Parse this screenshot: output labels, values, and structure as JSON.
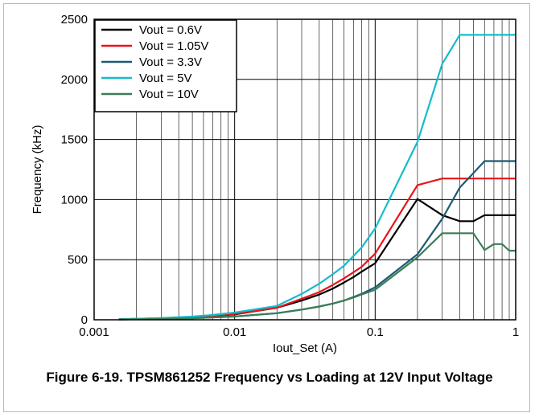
{
  "caption": "Figure 6-19. TPSM861252 Frequency vs Loading at 12V Input Voltage",
  "chart_data": {
    "type": "line",
    "title": "",
    "xlabel": "Iout_Set (A)",
    "ylabel": "Frequency (kHz)",
    "x_scale": "log",
    "xlim": [
      0.001,
      1
    ],
    "ylim": [
      0,
      2500
    ],
    "x_ticks": [
      0.001,
      0.01,
      0.1,
      1
    ],
    "x_tick_labels": [
      "0.001",
      "0.01",
      "0.1",
      "1"
    ],
    "y_ticks": [
      0,
      500,
      1000,
      1500,
      2000,
      2500
    ],
    "y_tick_labels": [
      "0",
      "500",
      "1000",
      "1500",
      "2000",
      "2500"
    ],
    "grid": true,
    "legend_position": "top-left",
    "x": [
      0.0015,
      0.002,
      0.003,
      0.005,
      0.007,
      0.01,
      0.02,
      0.03,
      0.04,
      0.05,
      0.06,
      0.07,
      0.08,
      0.1,
      0.2,
      0.3,
      0.4,
      0.5,
      0.6,
      0.7,
      0.8,
      0.9,
      1
    ],
    "series": [
      {
        "name": "Vout = 0.6V",
        "color": "#000000",
        "values": [
          5,
          8,
          13,
          22,
          32,
          45,
          100,
          160,
          210,
          260,
          310,
          355,
          400,
          470,
          1005,
          870,
          820,
          820,
          870,
          870,
          870,
          870,
          870
        ]
      },
      {
        "name": "Vout = 1.05V",
        "color": "#e8141b",
        "values": [
          5,
          8,
          13,
          22,
          32,
          48,
          100,
          175,
          230,
          290,
          345,
          395,
          440,
          550,
          1120,
          1175,
          1175,
          1175,
          1175,
          1175,
          1175,
          1175,
          1175
        ]
      },
      {
        "name": "Vout = 3.3V",
        "color": "#1c5a73",
        "values": [
          3,
          5,
          8,
          13,
          20,
          28,
          55,
          85,
          110,
          135,
          160,
          190,
          215,
          270,
          545,
          840,
          1100,
          1220,
          1320,
          1320,
          1320,
          1320,
          1320
        ]
      },
      {
        "name": "Vout = 5V",
        "color": "#14bccb",
        "values": [
          5,
          9,
          15,
          27,
          40,
          60,
          115,
          215,
          300,
          380,
          450,
          530,
          600,
          760,
          1480,
          2130,
          2370,
          2370,
          2370,
          2370,
          2370,
          2370,
          2370
        ]
      },
      {
        "name": "Vout = 10V",
        "color": "#3b7d57",
        "values": [
          3,
          5,
          8,
          13,
          20,
          27,
          55,
          85,
          110,
          135,
          160,
          185,
          210,
          250,
          520,
          720,
          720,
          720,
          580,
          630,
          630,
          575,
          575
        ]
      }
    ]
  }
}
